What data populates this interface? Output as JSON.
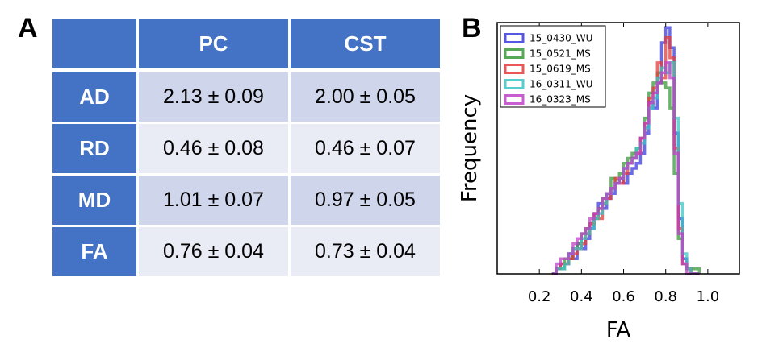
{
  "panels": {
    "a": "A",
    "b": "B"
  },
  "table": {
    "columns": [
      "",
      "PC",
      "CST"
    ],
    "rows": [
      {
        "label": "AD",
        "pc": "2.13 ± 0.09",
        "cst": "2.00 ± 0.05"
      },
      {
        "label": "RD",
        "pc": "0.46 ± 0.08",
        "cst": "0.46 ± 0.07"
      },
      {
        "label": "MD",
        "pc": "1.01 ± 0.07",
        "cst": "0.97 ± 0.05"
      },
      {
        "label": "FA",
        "pc": "0.76 ± 0.04",
        "cst": "0.73 ± 0.04"
      }
    ]
  },
  "chart_data": {
    "type": "histogram",
    "title": "",
    "xlabel": "FA",
    "ylabel": "Frequency",
    "xlim": [
      0.0,
      1.15
    ],
    "ylim": [
      0,
      50
    ],
    "xticks": [
      "0.2",
      "0.4",
      "0.6",
      "0.8",
      "1.0"
    ],
    "yticks_shown": false,
    "legend_position": "top-left",
    "bin_edges": [
      0.26,
      0.28,
      0.3,
      0.32,
      0.34,
      0.36,
      0.38,
      0.4,
      0.42,
      0.44,
      0.46,
      0.48,
      0.5,
      0.52,
      0.54,
      0.56,
      0.58,
      0.6,
      0.62,
      0.64,
      0.66,
      0.68,
      0.7,
      0.72,
      0.74,
      0.76,
      0.78,
      0.8,
      0.82,
      0.84,
      0.86,
      0.88,
      0.9,
      0.92,
      0.94,
      0.96
    ],
    "series": [
      {
        "name": "15_0430_WU",
        "color": "#3a3ae0",
        "values": [
          0,
          1,
          2,
          2,
          4,
          3,
          6,
          5,
          7,
          9,
          12,
          14,
          13,
          15,
          16,
          18,
          19,
          18,
          20,
          21,
          22,
          24,
          28,
          34,
          33,
          38,
          46,
          49,
          45,
          28,
          11,
          3,
          1,
          0,
          0
        ]
      },
      {
        "name": "15_0521_MS",
        "color": "#3a9a3a",
        "values": [
          0,
          1,
          1,
          3,
          3,
          5,
          6,
          8,
          9,
          10,
          11,
          13,
          15,
          16,
          19,
          18,
          20,
          22,
          23,
          24,
          25,
          27,
          31,
          36,
          38,
          40,
          38,
          37,
          33,
          20,
          7,
          2,
          1,
          1,
          1
        ]
      },
      {
        "name": "15_0619_MS",
        "color": "#e83a3a",
        "values": [
          0,
          1,
          2,
          2,
          3,
          4,
          5,
          6,
          8,
          10,
          12,
          11,
          14,
          15,
          17,
          19,
          18,
          20,
          22,
          23,
          24,
          27,
          30,
          35,
          37,
          42,
          39,
          47,
          43,
          25,
          9,
          2,
          1,
          0,
          0
        ]
      },
      {
        "name": "16_0311_WU",
        "color": "#3ac6c6",
        "values": [
          0,
          1,
          1,
          2,
          4,
          5,
          5,
          7,
          8,
          9,
          11,
          12,
          14,
          16,
          17,
          18,
          19,
          21,
          22,
          23,
          25,
          26,
          29,
          33,
          35,
          39,
          41,
          40,
          42,
          31,
          14,
          4,
          1,
          0,
          0
        ]
      },
      {
        "name": "16_0323_MS",
        "color": "#c040c8",
        "values": [
          0,
          2,
          3,
          3,
          4,
          6,
          7,
          8,
          9,
          11,
          12,
          13,
          15,
          16,
          17,
          18,
          19,
          21,
          22,
          23,
          24,
          27,
          30,
          34,
          36,
          38,
          40,
          42,
          39,
          24,
          8,
          2,
          0,
          0,
          0
        ]
      }
    ]
  }
}
